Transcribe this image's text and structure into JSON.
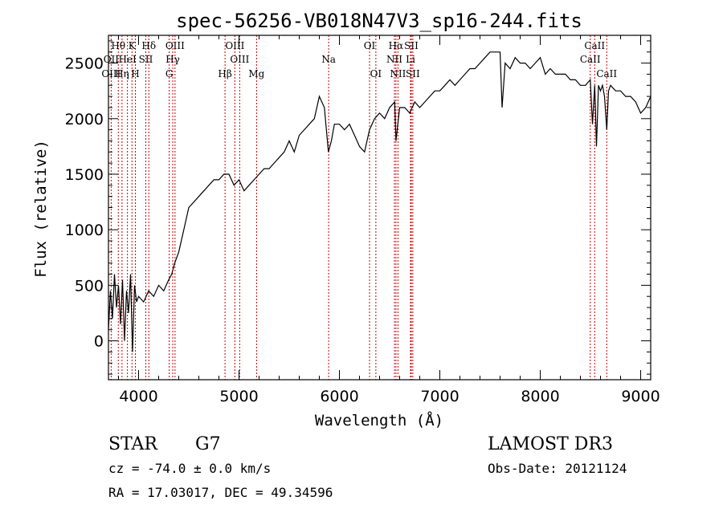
{
  "chart_data": {
    "type": "line",
    "title": "spec-56256-VB018N47V3_sp16-244.fits",
    "xlabel": "Wavelength (Å)",
    "ylabel": "Flux (relative)",
    "xlim": [
      3700,
      9100
    ],
    "ylim": [
      -350,
      2750
    ],
    "xticks": [
      4000,
      5000,
      6000,
      7000,
      8000,
      9000
    ],
    "yticks": [
      0,
      500,
      1000,
      1500,
      2000,
      2500
    ],
    "series": [
      {
        "name": "spectrum",
        "x": [
          3700,
          3720,
          3740,
          3760,
          3780,
          3800,
          3820,
          3840,
          3860,
          3880,
          3900,
          3920,
          3940,
          3960,
          3980,
          4000,
          4050,
          4100,
          4150,
          4200,
          4250,
          4300,
          4330,
          4360,
          4400,
          4450,
          4500,
          4550,
          4600,
          4650,
          4700,
          4750,
          4800,
          4850,
          4900,
          4950,
          5000,
          5050,
          5100,
          5150,
          5200,
          5250,
          5300,
          5350,
          5400,
          5450,
          5500,
          5550,
          5600,
          5650,
          5700,
          5750,
          5800,
          5850,
          5890,
          5920,
          5950,
          6000,
          6050,
          6100,
          6150,
          6200,
          6250,
          6300,
          6350,
          6400,
          6450,
          6500,
          6550,
          6563,
          6600,
          6650,
          6700,
          6750,
          6800,
          6850,
          6900,
          6950,
          7000,
          7050,
          7100,
          7150,
          7200,
          7250,
          7300,
          7350,
          7400,
          7450,
          7500,
          7550,
          7600,
          7620,
          7650,
          7700,
          7750,
          7800,
          7850,
          7900,
          7950,
          8000,
          8050,
          8100,
          8150,
          8200,
          8250,
          8300,
          8350,
          8400,
          8450,
          8498,
          8520,
          8542,
          8560,
          8580,
          8600,
          8620,
          8640,
          8662,
          8680,
          8700,
          8750,
          8800,
          8850,
          8900,
          8950,
          9000,
          9050,
          9100
        ],
        "y": [
          100,
          450,
          200,
          600,
          300,
          500,
          150,
          550,
          0,
          450,
          250,
          600,
          -100,
          500,
          350,
          400,
          350,
          450,
          400,
          500,
          450,
          550,
          600,
          700,
          800,
          1000,
          1200,
          1250,
          1300,
          1350,
          1400,
          1450,
          1450,
          1500,
          1500,
          1400,
          1450,
          1350,
          1400,
          1450,
          1500,
          1550,
          1550,
          1600,
          1650,
          1700,
          1800,
          1700,
          1850,
          1900,
          1950,
          2000,
          2200,
          2100,
          1700,
          1800,
          1950,
          1950,
          1900,
          1950,
          1850,
          1750,
          1700,
          1900,
          2000,
          2050,
          2000,
          2100,
          2150,
          1800,
          2100,
          2100,
          2050,
          2150,
          2100,
          2150,
          2200,
          2250,
          2250,
          2300,
          2350,
          2300,
          2350,
          2400,
          2450,
          2450,
          2500,
          2550,
          2600,
          2600,
          2600,
          2100,
          2500,
          2450,
          2550,
          2500,
          2500,
          2450,
          2500,
          2550,
          2400,
          2450,
          2400,
          2400,
          2400,
          2350,
          2350,
          2300,
          2300,
          2350,
          1950,
          2300,
          1750,
          2300,
          2250,
          2300,
          2200,
          1900,
          2250,
          2300,
          2250,
          2250,
          2200,
          2200,
          2150,
          2050,
          2100,
          2200
        ]
      }
    ],
    "annotations": [
      {
        "label": "Hθ",
        "wavelength": 3798,
        "row": 0
      },
      {
        "label": "K",
        "wavelength": 3934,
        "row": 0
      },
      {
        "label": "Hδ",
        "wavelength": 4102,
        "row": 0
      },
      {
        "label": "OIII",
        "wavelength": 4363,
        "row": 0
      },
      {
        "label": "OIII",
        "wavelength": 4959,
        "row": 0
      },
      {
        "label": "OI",
        "wavelength": 6300,
        "row": 0
      },
      {
        "label": "Hα",
        "wavelength": 6563,
        "row": 0
      },
      {
        "label": "SII",
        "wavelength": 6716,
        "row": 0
      },
      {
        "label": "CaII",
        "wavelength": 8542,
        "row": 0
      },
      {
        "label": "OII",
        "wavelength": 3727,
        "row": 1
      },
      {
        "label": "HeI",
        "wavelength": 3889,
        "row": 1
      },
      {
        "label": "SII",
        "wavelength": 4072,
        "row": 1
      },
      {
        "label": "Hγ",
        "wavelength": 4340,
        "row": 1
      },
      {
        "label": "OIII",
        "wavelength": 5007,
        "row": 1
      },
      {
        "label": "NII",
        "wavelength": 6548,
        "row": 1
      },
      {
        "label": "Li",
        "wavelength": 6708,
        "row": 1
      },
      {
        "label": "CaII",
        "wavelength": 8498,
        "row": 1
      },
      {
        "label": "Na",
        "wavelength": 5893,
        "row": 1
      },
      {
        "label": "OIII",
        "wavelength": 3727,
        "row": 2
      },
      {
        "label": "Hη",
        "wavelength": 3835,
        "row": 2
      },
      {
        "label": "H",
        "wavelength": 3968,
        "row": 2
      },
      {
        "label": "G",
        "wavelength": 4305,
        "row": 2
      },
      {
        "label": "Hβ",
        "wavelength": 4861,
        "row": 2
      },
      {
        "label": "Mg",
        "wavelength": 5175,
        "row": 2
      },
      {
        "label": "OI",
        "wavelength": 6363,
        "row": 2
      },
      {
        "label": "NII",
        "wavelength": 6583,
        "row": 2
      },
      {
        "label": "SII",
        "wavelength": 6731,
        "row": 2
      },
      {
        "label": "CaII",
        "wavelength": 8662,
        "row": 2
      }
    ],
    "line_markers": [
      3727,
      3798,
      3835,
      3889,
      3934,
      3968,
      4072,
      4102,
      4305,
      4340,
      4363,
      4861,
      4959,
      5007,
      5175,
      5893,
      6300,
      6363,
      6548,
      6563,
      6583,
      6708,
      6716,
      6731,
      8498,
      8542,
      8662
    ],
    "colors": {
      "line": "#000000",
      "marker": "#cc0000",
      "axes": "#000000"
    }
  },
  "footer": {
    "object_type": "STAR",
    "subclass": "G7",
    "survey": "LAMOST DR3",
    "redshift": "cz = -74.0 ± 0.0 km/s",
    "obs_date": "Obs-Date: 20121124",
    "coords": "RA =  17.03017, DEC =  49.34596"
  }
}
